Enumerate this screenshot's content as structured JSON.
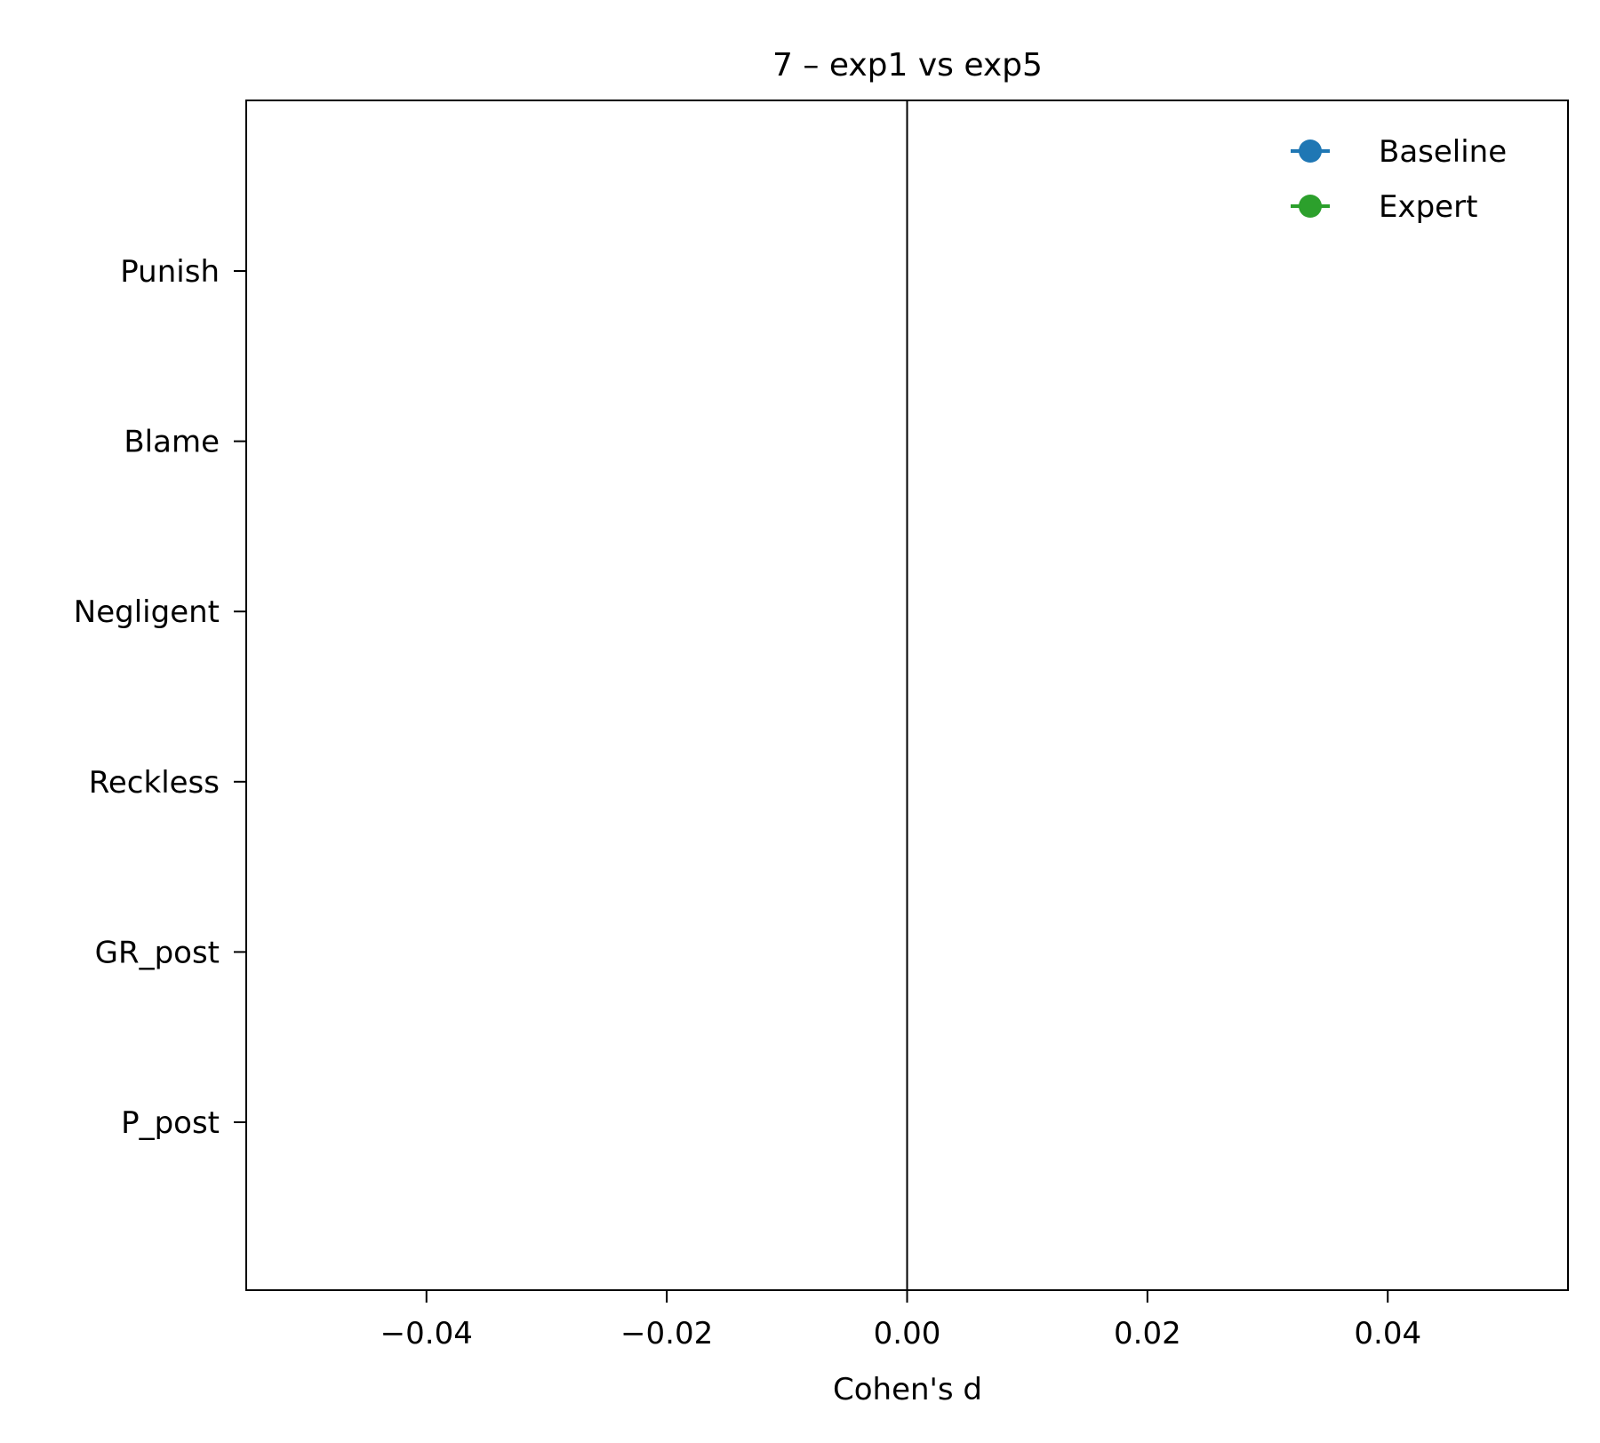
{
  "chart_data": {
    "type": "scatter",
    "title": "7  –  exp1 vs exp5",
    "xlabel": "Cohen's d",
    "ylabel": "",
    "xlim": [
      -0.055,
      0.055
    ],
    "xticks": [
      -0.04,
      -0.02,
      0.0,
      0.02,
      0.04
    ],
    "xtick_labels": [
      "−0.04",
      "−0.02",
      "0.00",
      "0.02",
      "0.04"
    ],
    "categories": [
      "Punish",
      "Blame",
      "Negligent",
      "Reckless",
      "GR_post",
      "P_post"
    ],
    "reference_line_x": 0.0,
    "grid": false,
    "legend_position": "upper-right",
    "series": [
      {
        "name": "Baseline",
        "color": "#1f77b4",
        "marker": "circle",
        "values": []
      },
      {
        "name": "Expert",
        "color": "#2ca02c",
        "marker": "circle",
        "values": []
      }
    ]
  }
}
